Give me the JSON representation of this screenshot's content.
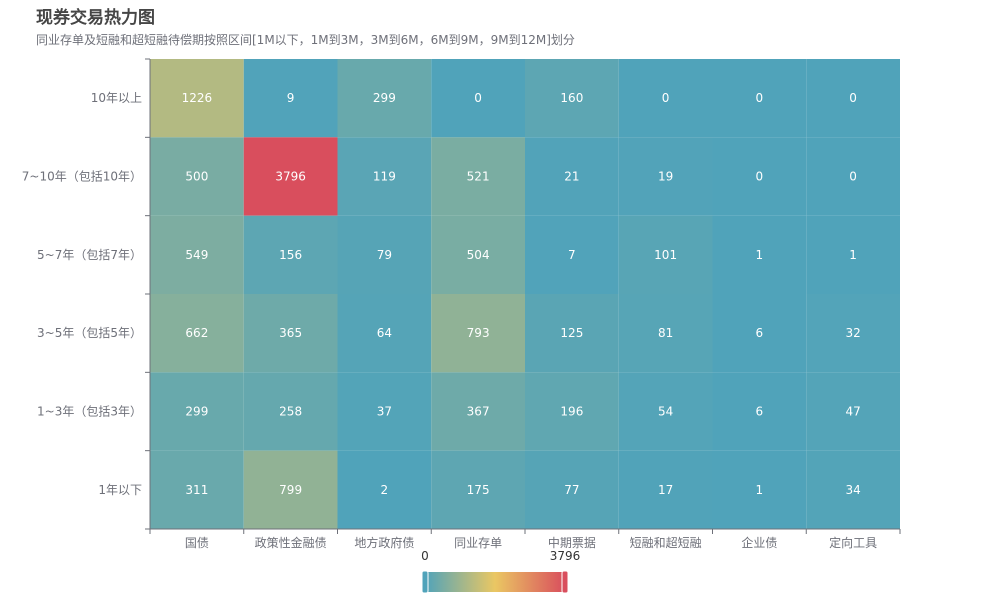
{
  "chart_data": {
    "type": "heatmap",
    "title": "现券交易热力图",
    "subtitle": "同业存单及短融和超短融待偿期按照区间[1M以下，1M到3M，3M到6M，6M到9M，9M到12M]划分",
    "x_categories": [
      "国债",
      "政策性金融债",
      "地方政府债",
      "同业存单",
      "中期票据",
      "短融和超短融",
      "企业债",
      "定向工具"
    ],
    "y_categories": [
      "10年以上",
      "7~10年（包括10年）",
      "5~7年（包括7年）",
      "3~5年（包括5年）",
      "1~3年（包括3年）",
      "1年以下"
    ],
    "values": [
      [
        1226,
        9,
        299,
        0,
        160,
        0,
        0,
        0
      ],
      [
        500,
        3796,
        119,
        521,
        21,
        19,
        0,
        0
      ],
      [
        549,
        156,
        79,
        504,
        7,
        101,
        1,
        1
      ],
      [
        662,
        365,
        64,
        793,
        125,
        81,
        6,
        32
      ],
      [
        299,
        258,
        37,
        367,
        196,
        54,
        6,
        47
      ],
      [
        311,
        799,
        2,
        175,
        77,
        17,
        1,
        34
      ]
    ],
    "visual_map": {
      "min": 0,
      "max": 3796,
      "min_label": "0",
      "max_label": "3796",
      "colors": [
        "#50a3ba",
        "#eac763",
        "#d94e5d"
      ]
    }
  }
}
